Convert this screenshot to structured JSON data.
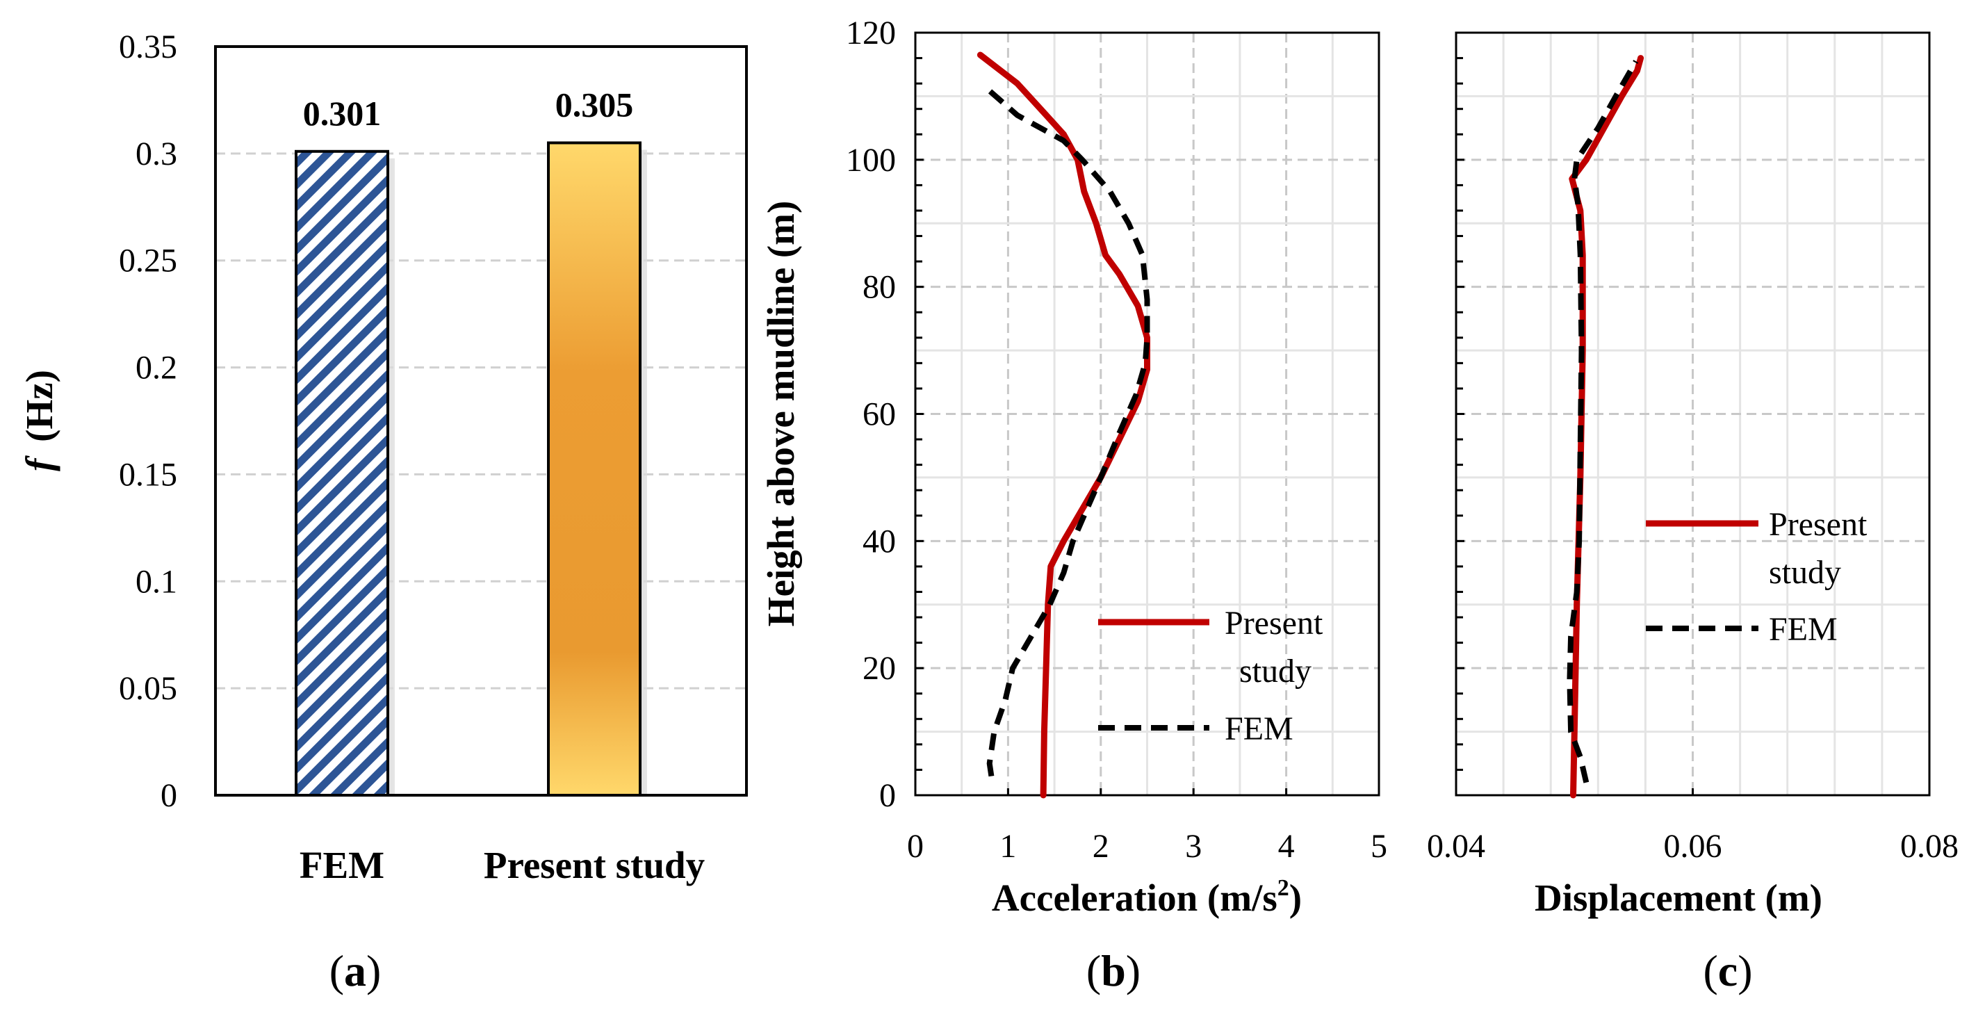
{
  "chart_data": [
    {
      "id": "a",
      "type": "bar",
      "panel_label": {
        "open": "(",
        "letter": "a",
        "close": ")"
      },
      "ylabel": {
        "italic": "f",
        "rest": "(Hz)"
      },
      "ylim": [
        0,
        0.35
      ],
      "yticks": [
        "0",
        "0.05",
        "0.1",
        "0.15",
        "0.2",
        "0.25",
        "0.3",
        "0.35"
      ],
      "ytick_values": [
        0,
        0.05,
        0.1,
        0.15,
        0.2,
        0.25,
        0.3,
        0.35
      ],
      "categories": [
        "FEM",
        "Present study"
      ],
      "values": [
        0.301,
        0.305
      ],
      "value_labels": [
        "0.301",
        "0.305"
      ],
      "grid": true
    },
    {
      "id": "b",
      "type": "line",
      "panel_label": {
        "open": "(",
        "letter": "b",
        "close": ")"
      },
      "xlabel": {
        "main": "Acceleration (m/s",
        "sup": "2",
        "end": ")"
      },
      "ylabel": "Height above mudline (m)",
      "xlim": [
        0,
        5
      ],
      "ylim": [
        0,
        120
      ],
      "xticks": [
        "0",
        "1",
        "2",
        "3",
        "4",
        "5"
      ],
      "xtick_values": [
        0,
        1,
        2,
        3,
        4,
        5
      ],
      "yticks": [
        "0",
        "20",
        "40",
        "60",
        "80",
        "100",
        "120"
      ],
      "ytick_values": [
        0,
        20,
        40,
        60,
        80,
        100,
        120
      ],
      "legend": {
        "present_line1": "Present",
        "present_line2": "study",
        "fem": "FEM"
      },
      "series": [
        {
          "name": "Present study",
          "color": "#c00000",
          "style": "solid",
          "points": [
            [
              1.38,
              0
            ],
            [
              1.39,
              10
            ],
            [
              1.41,
              20
            ],
            [
              1.43,
              30
            ],
            [
              1.46,
              36
            ],
            [
              1.6,
              40
            ],
            [
              1.8,
              45
            ],
            [
              2.0,
              50
            ],
            [
              2.2,
              56
            ],
            [
              2.4,
              62
            ],
            [
              2.5,
              67
            ],
            [
              2.5,
              72
            ],
            [
              2.4,
              77
            ],
            [
              2.2,
              82
            ],
            [
              2.05,
              85
            ],
            [
              1.95,
              90
            ],
            [
              1.82,
              95
            ],
            [
              1.75,
              100
            ],
            [
              1.6,
              104
            ],
            [
              1.35,
              108
            ],
            [
              1.1,
              112
            ],
            [
              0.7,
              116.5
            ]
          ]
        },
        {
          "name": "FEM",
          "color": "#000000",
          "style": "dashed",
          "points": [
            [
              0.82,
              3
            ],
            [
              0.8,
              5
            ],
            [
              0.85,
              10
            ],
            [
              0.97,
              15
            ],
            [
              1.05,
              20
            ],
            [
              1.25,
              25
            ],
            [
              1.45,
              30
            ],
            [
              1.6,
              35
            ],
            [
              1.7,
              40
            ],
            [
              1.85,
              45
            ],
            [
              2.0,
              50
            ],
            [
              2.2,
              57
            ],
            [
              2.38,
              63
            ],
            [
              2.48,
              68
            ],
            [
              2.5,
              72
            ],
            [
              2.5,
              78
            ],
            [
              2.45,
              85
            ],
            [
              2.3,
              90
            ],
            [
              2.1,
              95
            ],
            [
              1.8,
              100
            ],
            [
              1.6,
              103
            ],
            [
              1.1,
              107
            ],
            [
              0.75,
              111.5
            ]
          ]
        }
      ]
    },
    {
      "id": "c",
      "type": "line",
      "panel_label": {
        "open": "(",
        "letter": "c",
        "close": ")"
      },
      "xlabel": "Displacement (m)",
      "xlim": [
        0.04,
        0.08
      ],
      "ylim": [
        0,
        120
      ],
      "xticks": [
        "0.04",
        "0.06",
        "0.08"
      ],
      "xtick_values": [
        0.04,
        0.06,
        0.08
      ],
      "legend": {
        "present_line1": "Present",
        "present_line2": "study",
        "fem": "FEM"
      },
      "series": [
        {
          "name": "Present study",
          "color": "#c00000",
          "style": "solid",
          "points": [
            [
              0.0499,
              0
            ],
            [
              0.05,
              10
            ],
            [
              0.0502,
              30
            ],
            [
              0.0505,
              50
            ],
            [
              0.0507,
              70
            ],
            [
              0.0507,
              85
            ],
            [
              0.0505,
              92
            ],
            [
              0.0498,
              97
            ],
            [
              0.051,
              100
            ],
            [
              0.0525,
              105
            ],
            [
              0.054,
              110
            ],
            [
              0.0553,
              114
            ],
            [
              0.0556,
              116
            ]
          ]
        },
        {
          "name": "FEM",
          "color": "#000000",
          "style": "dashed",
          "points": [
            [
              0.051,
              2
            ],
            [
              0.0505,
              6
            ],
            [
              0.0497,
              10
            ],
            [
              0.0496,
              18
            ],
            [
              0.0497,
              25
            ],
            [
              0.0502,
              32
            ],
            [
              0.0504,
              40
            ],
            [
              0.0505,
              55
            ],
            [
              0.0506,
              70
            ],
            [
              0.0505,
              85
            ],
            [
              0.0503,
              93
            ],
            [
              0.05,
              97
            ],
            [
              0.0502,
              100
            ],
            [
              0.052,
              105
            ],
            [
              0.0535,
              110
            ],
            [
              0.0552,
              115.5
            ]
          ]
        }
      ]
    }
  ]
}
